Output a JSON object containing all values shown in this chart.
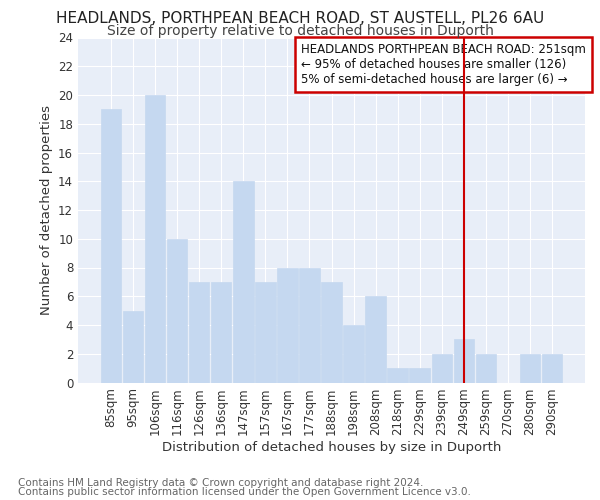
{
  "title": "HEADLANDS, PORTHPEAN BEACH ROAD, ST AUSTELL, PL26 6AU",
  "subtitle": "Size of property relative to detached houses in Duporth",
  "xlabel": "Distribution of detached houses by size in Duporth",
  "ylabel": "Number of detached properties",
  "categories": [
    "85sqm",
    "95sqm",
    "106sqm",
    "116sqm",
    "126sqm",
    "136sqm",
    "147sqm",
    "157sqm",
    "167sqm",
    "177sqm",
    "188sqm",
    "198sqm",
    "208sqm",
    "218sqm",
    "229sqm",
    "239sqm",
    "249sqm",
    "259sqm",
    "270sqm",
    "280sqm",
    "290sqm"
  ],
  "values": [
    19,
    5,
    20,
    10,
    7,
    7,
    14,
    7,
    8,
    8,
    7,
    4,
    6,
    1,
    1,
    2,
    3,
    2,
    0,
    2,
    2
  ],
  "bar_color": "#c5d8f0",
  "bar_edge_color": "#c5d8f0",
  "vline_x": 16,
  "vline_color": "#cc0000",
  "legend_text_line1": "HEADLANDS PORTHPEAN BEACH ROAD: 251sqm",
  "legend_text_line2": "← 95% of detached houses are smaller (126)",
  "legend_text_line3": "5% of semi-detached houses are larger (6) →",
  "legend_box_color": "#cc0000",
  "footnote1": "Contains HM Land Registry data © Crown copyright and database right 2024.",
  "footnote2": "Contains public sector information licensed under the Open Government Licence v3.0.",
  "ylim": [
    0,
    24
  ],
  "yticks": [
    0,
    2,
    4,
    6,
    8,
    10,
    12,
    14,
    16,
    18,
    20,
    22,
    24
  ],
  "background_color": "#e8eef8",
  "title_fontsize": 11,
  "subtitle_fontsize": 10,
  "axis_label_fontsize": 9.5,
  "tick_fontsize": 8.5,
  "legend_fontsize": 8.5,
  "footnote_fontsize": 7.5
}
